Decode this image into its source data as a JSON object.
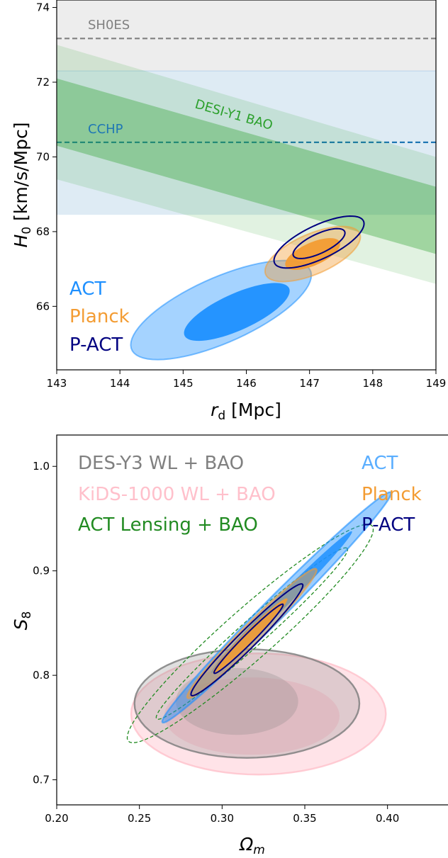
{
  "chart_data": [
    {
      "type": "contour",
      "xlabel": {
        "main": "r",
        "sub": "d",
        "rest": " [Mpc]"
      },
      "ylabel": {
        "main": "H",
        "sub": "0",
        "rest": " [km/s/Mpc]"
      },
      "xlim": [
        143,
        149
      ],
      "ylim": [
        64.3,
        74.2
      ],
      "xticks": [
        "143",
        "144",
        "145",
        "146",
        "147",
        "148",
        "149"
      ],
      "xtick_values": [
        143,
        144,
        145,
        146,
        147,
        148,
        149
      ],
      "yticks": [
        "66",
        "68",
        "70",
        "72",
        "74"
      ],
      "ytick_values": [
        66,
        68,
        70,
        72,
        74
      ],
      "colors": {
        "act": "#1e90ff",
        "planck": "#f39c33",
        "pact": "#000080",
        "shoes": "#808080",
        "cchp": "#1f77b4",
        "desi": "#2ca02c"
      },
      "reference_bands": [
        {
          "label": "SH0ES",
          "color": "#808080",
          "center": 73.17,
          "low": 72.3,
          "high": 74.2
        },
        {
          "label": "CCHP",
          "color": "#1f77b4",
          "center": 70.39,
          "low": 68.45,
          "high": 72.3
        }
      ],
      "desi_band": {
        "label": "DESI-Y1 BAO",
        "color": "#2ca02c",
        "inner": {
          "at_x_min": [
            70.3,
            72.1
          ],
          "at_x_max": [
            67.4,
            69.2
          ]
        },
        "outer": {
          "at_x_min": [
            69.4,
            73.0
          ],
          "at_x_max": [
            66.6,
            70.0
          ]
        }
      },
      "series": [
        {
          "name": "ACT",
          "color": "#1e90ff",
          "inner": {
            "cx": 145.85,
            "cy": 65.85,
            "rx": 1.06,
            "ry": 0.42,
            "angle_deg": 42
          },
          "outer": {
            "cx": 145.6,
            "cy": 65.9,
            "rx": 1.8,
            "ry": 0.75,
            "angle_deg": 42
          }
        },
        {
          "name": "Planck",
          "color": "#f39c33",
          "inner": {
            "cx": 147.05,
            "cy": 67.4,
            "rx": 0.55,
            "ry": 0.26,
            "angle_deg": 44
          },
          "outer": {
            "cx": 147.05,
            "cy": 67.4,
            "rx": 0.95,
            "ry": 0.46,
            "angle_deg": 44
          }
        },
        {
          "name": "P-ACT",
          "color": "#000080",
          "inner": {
            "cx": 147.15,
            "cy": 67.68,
            "rx": 0.53,
            "ry": 0.22,
            "angle_deg": 44
          },
          "outer": {
            "cx": 147.15,
            "cy": 67.72,
            "rx": 0.92,
            "ry": 0.38,
            "angle_deg": 44
          }
        }
      ]
    },
    {
      "type": "contour",
      "xlabel": {
        "main": "Ω",
        "sub": "m",
        "rest": ""
      },
      "ylabel": {
        "main": "S",
        "sub": "8",
        "rest": ""
      },
      "xlim": [
        0.2,
        0.44
      ],
      "ylim": [
        0.676,
        1.03
      ],
      "xticks": [
        "0.20",
        "0.25",
        "0.30",
        "0.35",
        "0.40"
      ],
      "xtick_values": [
        0.2,
        0.25,
        0.3,
        0.35,
        0.4
      ],
      "yticks": [
        "0.7",
        "0.8",
        "0.9",
        "1.0"
      ],
      "ytick_values": [
        0.7,
        0.8,
        0.9,
        1.0
      ],
      "series": [
        {
          "name": "KiDS-1000 WL + BAO",
          "color": "#ffc0cb",
          "style": "filled",
          "inner": {
            "cx": 0.318,
            "cy": 0.761,
            "rx": 0.053,
            "ry": 0.037,
            "angle_deg": 0
          },
          "outer": {
            "cx": 0.322,
            "cy": 0.763,
            "rx": 0.077,
            "ry": 0.058,
            "angle_deg": 0
          }
        },
        {
          "name": "DES-Y3 WL + BAO",
          "color": "#808080",
          "style": "filled",
          "inner": {
            "cx": 0.309,
            "cy": 0.775,
            "rx": 0.037,
            "ry": 0.032,
            "angle_deg": 0
          },
          "outer": {
            "cx": 0.315,
            "cy": 0.773,
            "rx": 0.068,
            "ry": 0.052,
            "angle_deg": 0
          }
        },
        {
          "name": "ACT Lensing + BAO",
          "color": "#228b22",
          "style": "dashed",
          "inner": {
            "cx": 0.318,
            "cy": 0.84,
            "rx": 0.1,
            "ry": 0.0095,
            "angle_deg": 55
          },
          "outer": {
            "cx": 0.317,
            "cy": 0.84,
            "rx": 0.127,
            "ry": 0.0185,
            "angle_deg": 55
          }
        },
        {
          "name": "ACT",
          "color": "#1e90ff",
          "style": "filled",
          "inner": {
            "cx": 0.336,
            "cy": 0.87,
            "rx": 0.08,
            "ry": 0.0045,
            "angle_deg": 58
          },
          "outer": {
            "cx": 0.333,
            "cy": 0.865,
            "rx": 0.13,
            "ry": 0.008,
            "angle_deg": 58
          }
        },
        {
          "name": "Planck",
          "color": "#f39c33",
          "style": "filled",
          "inner": {
            "cx": 0.317,
            "cy": 0.838,
            "rx": 0.042,
            "ry": 0.004,
            "angle_deg": 58
          },
          "outer": {
            "cx": 0.318,
            "cy": 0.84,
            "rx": 0.073,
            "ry": 0.007,
            "angle_deg": 58
          }
        },
        {
          "name": "P-ACT",
          "color": "#000080",
          "style": "line",
          "inner": {
            "cx": 0.316,
            "cy": 0.835,
            "rx": 0.039,
            "ry": 0.0035,
            "angle_deg": 58
          },
          "outer": {
            "cx": 0.315,
            "cy": 0.834,
            "rx": 0.063,
            "ry": 0.0065,
            "angle_deg": 58
          }
        }
      ],
      "legend": {
        "left": [
          {
            "label": "DES-Y3 WL + BAO",
            "color": "#808080"
          },
          {
            "label": "KiDS-1000 WL + BAO",
            "color": "#ffc0cb"
          },
          {
            "label": "ACT Lensing + BAO",
            "color": "#228b22"
          }
        ],
        "right": [
          {
            "label": "ACT",
            "color": "#5aaeff"
          },
          {
            "label": "Planck",
            "color": "#f39c33"
          },
          {
            "label": "P-ACT",
            "color": "#000080"
          }
        ]
      }
    }
  ]
}
